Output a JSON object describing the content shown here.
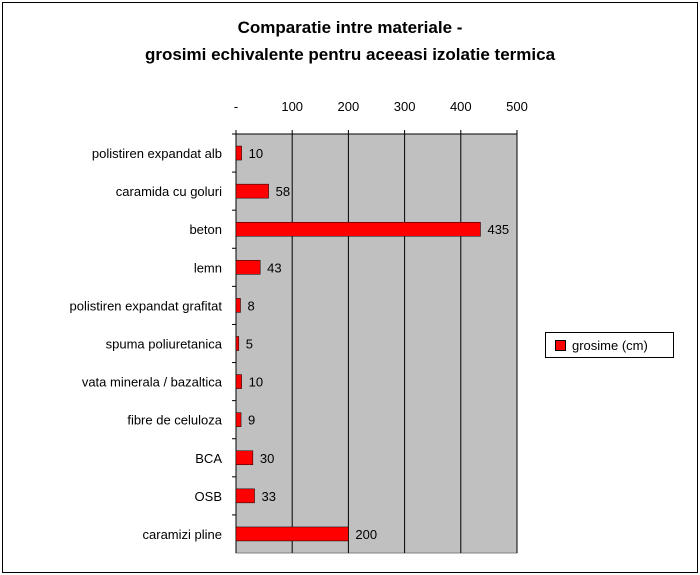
{
  "chart_data": {
    "type": "bar",
    "orientation": "horizontal",
    "title_line1": "Comparatie intre materiale -",
    "title_line2": "grosimi echivalente pentru aceeasi izolatie termica",
    "categories": [
      "polistiren expandat alb",
      "caramida cu goluri",
      "beton",
      "lemn",
      "polistiren expandat grafitat",
      "spuma poliuretanica",
      "vata minerala / bazaltica",
      "fibre de celuloza",
      "BCA",
      "OSB",
      "caramizi pline"
    ],
    "series": [
      {
        "name": "grosime (cm)",
        "values": [
          10,
          58,
          435,
          43,
          8,
          5,
          10,
          9,
          30,
          33,
          200
        ],
        "color": "#ff0000"
      }
    ],
    "xlim": [
      0,
      500
    ],
    "x_ticks": [
      "-",
      "100",
      "200",
      "300",
      "400",
      "500"
    ],
    "x_axis_position": "top",
    "grid": true,
    "plot_background": "#c0c0c0",
    "legend_position": "right"
  }
}
